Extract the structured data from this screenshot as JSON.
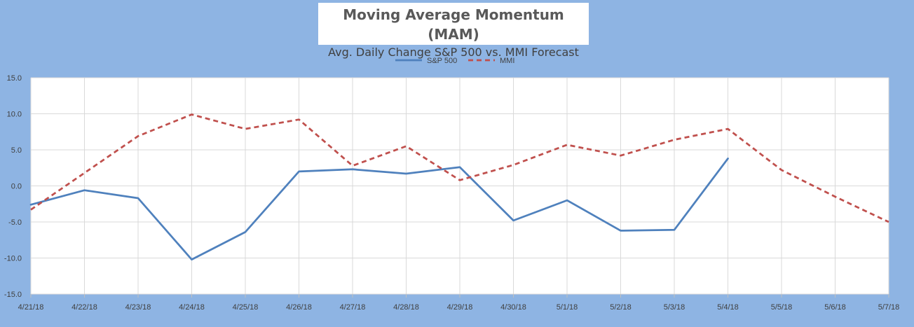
{
  "chart_data": {
    "type": "line",
    "title": "Moving Average Momentum (MAM)",
    "subtitle": "Avg. Daily Change S&P 500 vs. MMI Forecast",
    "xlabel": "",
    "ylabel": "",
    "x": [
      "4/21/18",
      "4/22/18",
      "4/23/18",
      "4/24/18",
      "4/25/18",
      "4/26/18",
      "4/27/18",
      "4/28/18",
      "4/29/18",
      "4/30/18",
      "5/1/18",
      "5/2/18",
      "5/3/18",
      "5/4/18",
      "5/5/18",
      "5/6/18",
      "5/7/18"
    ],
    "ylim": [
      -15,
      15
    ],
    "yticks": [
      15,
      10,
      5,
      0,
      -5,
      -10,
      -15
    ],
    "ytick_labels": [
      "15.0",
      "10.0",
      "5.0",
      "0.0",
      "-5.0",
      "-10.0",
      "-15.0"
    ],
    "grid": true,
    "legend_position": "top",
    "series": [
      {
        "name": "S&P 500",
        "color": "#4f81bd",
        "style": "solid",
        "values": [
          -2.6,
          -0.6,
          -1.7,
          -10.2,
          -6.4,
          2.0,
          2.3,
          1.7,
          2.6,
          -4.8,
          -2.0,
          -6.2,
          -6.1,
          3.8,
          null,
          null,
          null
        ]
      },
      {
        "name": "MMI",
        "color": "#c0504d",
        "style": "dashed",
        "values": [
          -3.3,
          1.8,
          6.9,
          9.9,
          7.9,
          9.2,
          2.8,
          5.5,
          0.8,
          2.9,
          5.7,
          4.2,
          6.4,
          7.9,
          2.2,
          -1.5,
          -5.0
        ]
      }
    ]
  }
}
